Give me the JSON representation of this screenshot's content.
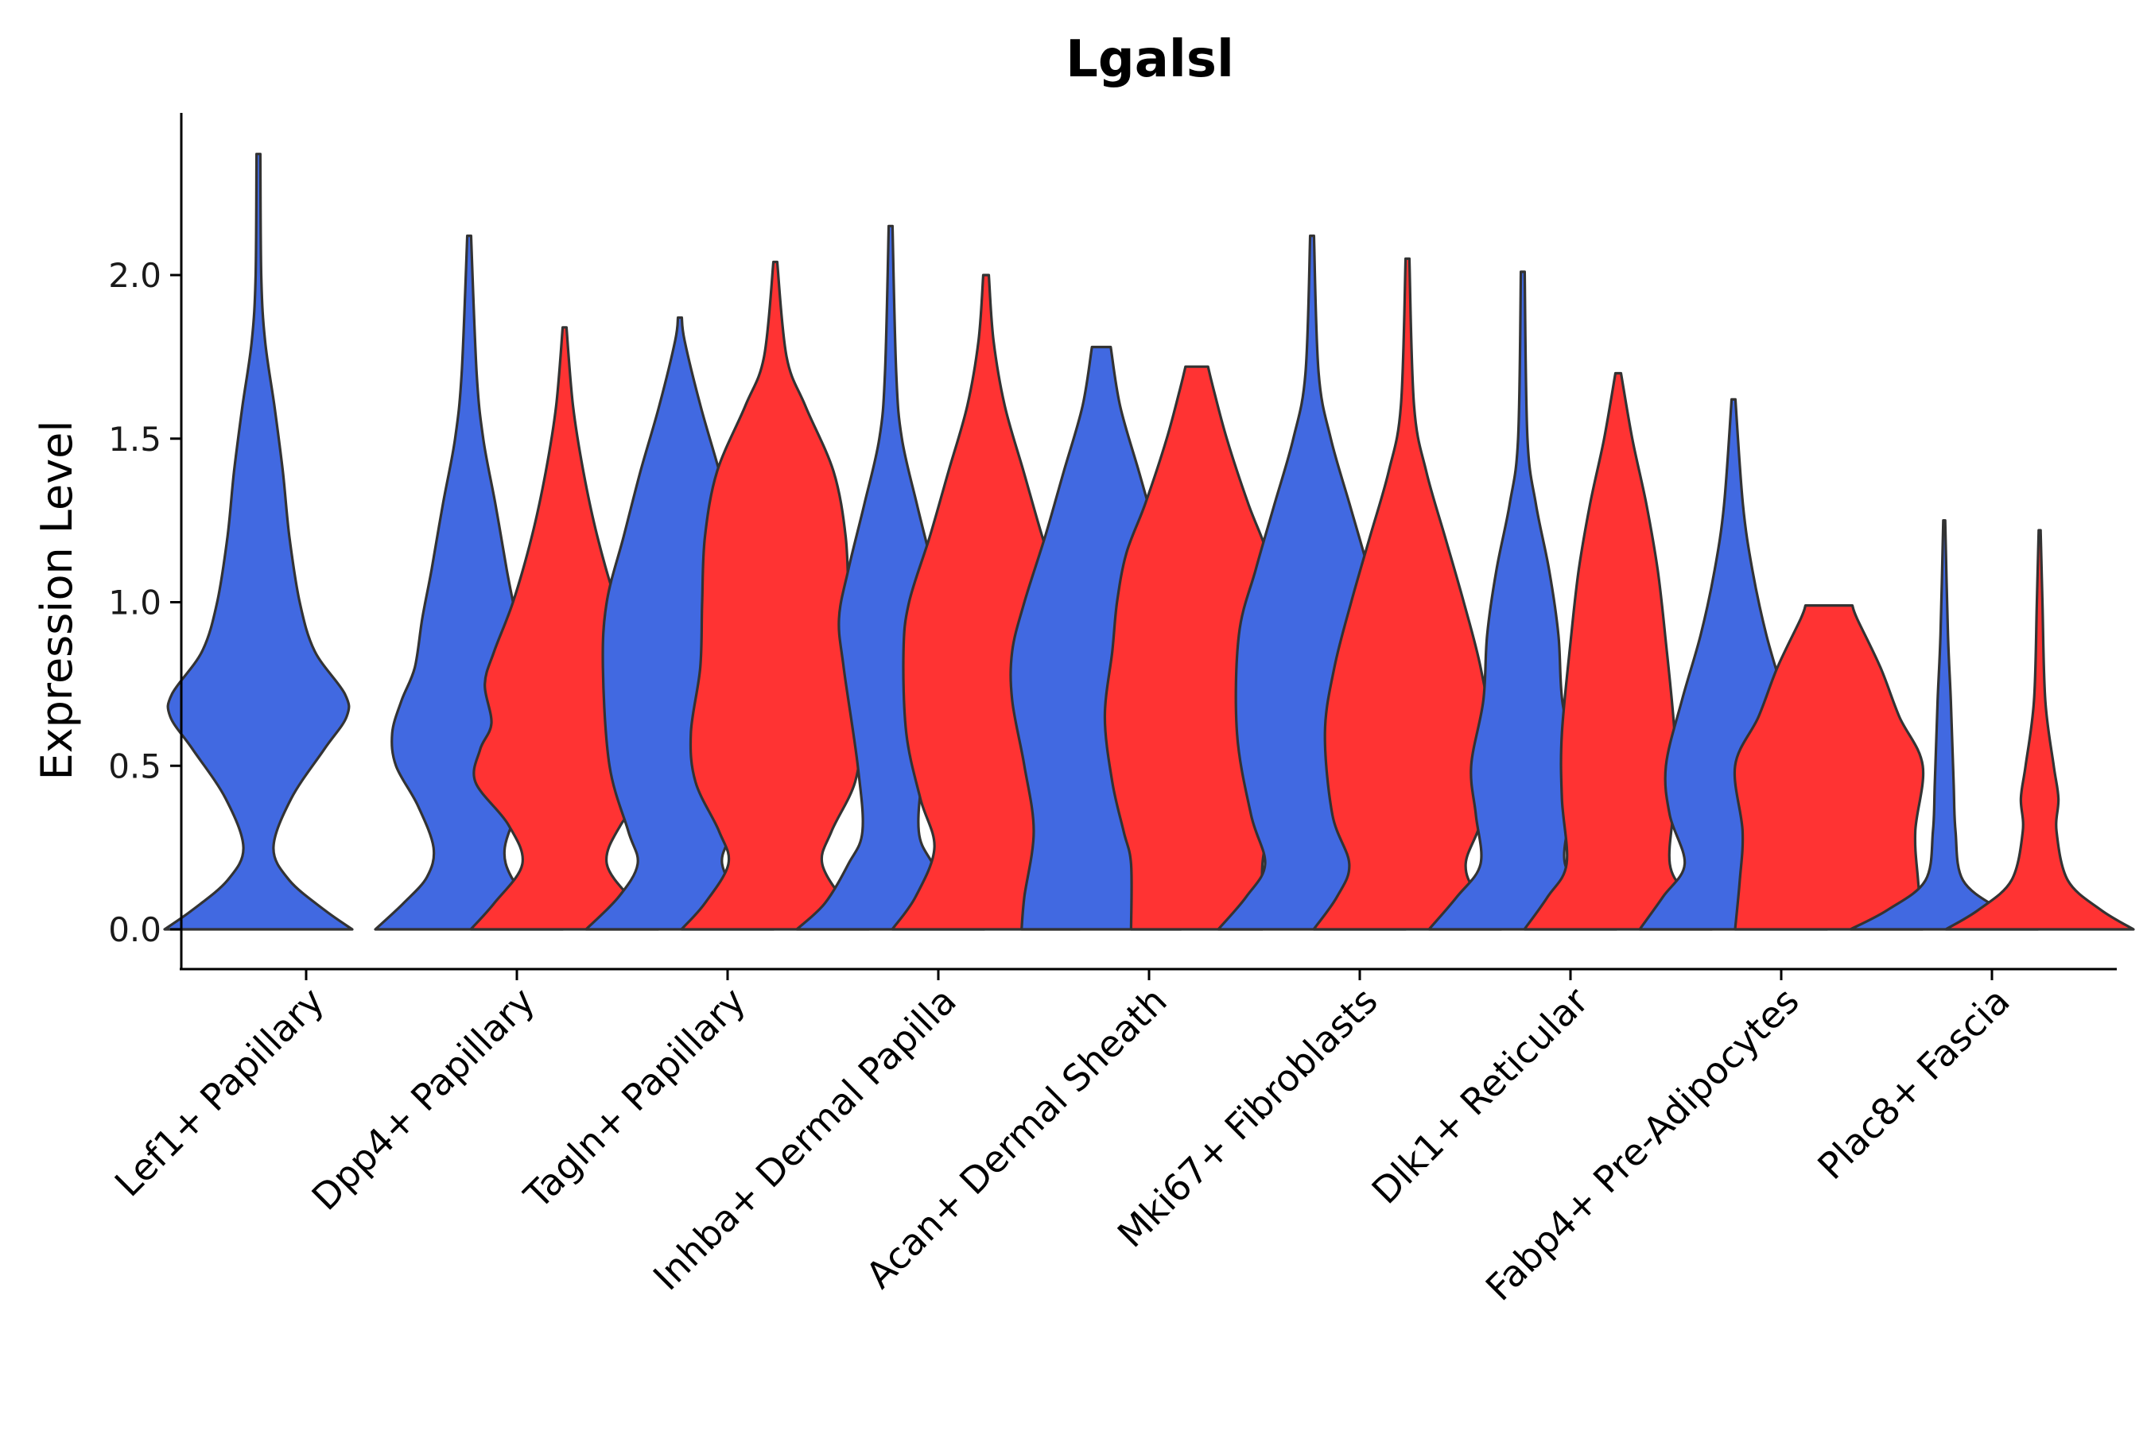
{
  "chart_data": {
    "type": "violin",
    "title": "Lgalsl",
    "xlabel": "",
    "ylabel": "Expression Level",
    "ylim": [
      -0.12,
      2.5
    ],
    "yticks": [
      0.0,
      0.5,
      1.0,
      1.5,
      2.0
    ],
    "ytick_labels": [
      "0.0",
      "0.5",
      "1.0",
      "1.5",
      "2.0"
    ],
    "categories": [
      "Lef1+ Papillary",
      "Dpp4+ Papillary",
      "Tagln+ Papillary",
      "Inhba+ Dermal Papilla",
      "Acan+ Dermal Sheath",
      "Mki67+ Fibroblasts",
      "Dlk1+ Reticular",
      "Fabp4+ Pre-Adipocytes",
      "Plac8+ Fascia"
    ],
    "colors": {
      "blue": "#4169E1",
      "red": "#FF3333"
    },
    "violins": [
      {
        "category": "Lef1+ Papillary",
        "color": "blue",
        "max": 2.37,
        "flat_top": false,
        "profile": [
          [
            0,
            1.0
          ],
          [
            0.06,
            0.7
          ],
          [
            0.15,
            0.33
          ],
          [
            0.25,
            0.16
          ],
          [
            0.4,
            0.35
          ],
          [
            0.55,
            0.7
          ],
          [
            0.65,
            0.94
          ],
          [
            0.72,
            0.92
          ],
          [
            0.85,
            0.6
          ],
          [
            1.0,
            0.44
          ],
          [
            1.2,
            0.33
          ],
          [
            1.4,
            0.26
          ],
          [
            1.6,
            0.17
          ],
          [
            1.8,
            0.07
          ],
          [
            2.0,
            0.03
          ],
          [
            2.37,
            0.02
          ]
        ]
      },
      {
        "category": "Dpp4+ Papillary",
        "color": "blue",
        "max": 2.12,
        "flat_top": false,
        "profile": [
          [
            0,
            1.0
          ],
          [
            0.08,
            0.7
          ],
          [
            0.16,
            0.45
          ],
          [
            0.25,
            0.38
          ],
          [
            0.38,
            0.55
          ],
          [
            0.5,
            0.78
          ],
          [
            0.6,
            0.82
          ],
          [
            0.7,
            0.72
          ],
          [
            0.8,
            0.58
          ],
          [
            0.95,
            0.5
          ],
          [
            1.1,
            0.4
          ],
          [
            1.3,
            0.28
          ],
          [
            1.5,
            0.15
          ],
          [
            1.7,
            0.08
          ],
          [
            2.12,
            0.02
          ]
        ]
      },
      {
        "category": "Dpp4+ Papillary",
        "color": "red",
        "max": 1.84,
        "flat_top": false,
        "profile": [
          [
            0,
            1.0
          ],
          [
            0.08,
            0.75
          ],
          [
            0.2,
            0.45
          ],
          [
            0.32,
            0.6
          ],
          [
            0.45,
            0.95
          ],
          [
            0.55,
            0.9
          ],
          [
            0.63,
            0.78
          ],
          [
            0.75,
            0.85
          ],
          [
            0.85,
            0.75
          ],
          [
            1.0,
            0.55
          ],
          [
            1.2,
            0.35
          ],
          [
            1.4,
            0.2
          ],
          [
            1.6,
            0.09
          ],
          [
            1.84,
            0.02
          ]
        ]
      },
      {
        "category": "Tagln+ Papillary",
        "color": "blue",
        "max": 1.87,
        "flat_top": false,
        "profile": [
          [
            0,
            1.0
          ],
          [
            0.1,
            0.65
          ],
          [
            0.2,
            0.45
          ],
          [
            0.3,
            0.55
          ],
          [
            0.5,
            0.75
          ],
          [
            0.8,
            0.82
          ],
          [
            1.0,
            0.78
          ],
          [
            1.2,
            0.6
          ],
          [
            1.4,
            0.42
          ],
          [
            1.6,
            0.22
          ],
          [
            1.8,
            0.05
          ],
          [
            1.87,
            0.02
          ]
        ]
      },
      {
        "category": "Tagln+ Papillary",
        "color": "red",
        "max": 2.04,
        "flat_top": false,
        "profile": [
          [
            0,
            1.0
          ],
          [
            0.08,
            0.75
          ],
          [
            0.2,
            0.5
          ],
          [
            0.3,
            0.6
          ],
          [
            0.45,
            0.85
          ],
          [
            0.6,
            0.9
          ],
          [
            0.8,
            0.8
          ],
          [
            1.0,
            0.78
          ],
          [
            1.2,
            0.75
          ],
          [
            1.4,
            0.62
          ],
          [
            1.6,
            0.32
          ],
          [
            1.75,
            0.12
          ],
          [
            2.04,
            0.02
          ]
        ]
      },
      {
        "category": "Inhba+ Dermal Papilla",
        "color": "blue",
        "max": 2.15,
        "flat_top": false,
        "profile": [
          [
            0,
            1.0
          ],
          [
            0.08,
            0.7
          ],
          [
            0.2,
            0.45
          ],
          [
            0.3,
            0.3
          ],
          [
            0.5,
            0.35
          ],
          [
            0.8,
            0.5
          ],
          [
            0.95,
            0.55
          ],
          [
            1.1,
            0.45
          ],
          [
            1.3,
            0.28
          ],
          [
            1.5,
            0.12
          ],
          [
            1.7,
            0.06
          ],
          [
            2.15,
            0.02
          ]
        ]
      },
      {
        "category": "Inhba+ Dermal Papilla",
        "color": "red",
        "max": 2.0,
        "flat_top": false,
        "profile": [
          [
            0,
            1.0
          ],
          [
            0.1,
            0.75
          ],
          [
            0.25,
            0.55
          ],
          [
            0.4,
            0.7
          ],
          [
            0.6,
            0.85
          ],
          [
            0.85,
            0.88
          ],
          [
            1.0,
            0.82
          ],
          [
            1.2,
            0.6
          ],
          [
            1.4,
            0.4
          ],
          [
            1.6,
            0.2
          ],
          [
            1.8,
            0.08
          ],
          [
            2.0,
            0.03
          ]
        ]
      },
      {
        "category": "Acan+ Dermal Sheath",
        "color": "blue",
        "max": 1.78,
        "flat_top": true,
        "profile": [
          [
            0,
            0.85
          ],
          [
            0.1,
            0.82
          ],
          [
            0.3,
            0.72
          ],
          [
            0.5,
            0.82
          ],
          [
            0.7,
            0.95
          ],
          [
            0.85,
            0.95
          ],
          [
            1.0,
            0.82
          ],
          [
            1.2,
            0.6
          ],
          [
            1.4,
            0.4
          ],
          [
            1.6,
            0.2
          ],
          [
            1.78,
            0.1
          ]
        ]
      },
      {
        "category": "Acan+ Dermal Sheath",
        "color": "red",
        "max": 1.72,
        "flat_top": true,
        "profile": [
          [
            0,
            0.7
          ],
          [
            0.2,
            0.7
          ],
          [
            0.3,
            0.78
          ],
          [
            0.45,
            0.9
          ],
          [
            0.65,
            0.98
          ],
          [
            0.85,
            0.9
          ],
          [
            1.0,
            0.85
          ],
          [
            1.15,
            0.75
          ],
          [
            1.3,
            0.55
          ],
          [
            1.5,
            0.32
          ],
          [
            1.65,
            0.18
          ],
          [
            1.72,
            0.12
          ]
        ]
      },
      {
        "category": "Mki67+ Fibroblasts",
        "color": "blue",
        "max": 2.12,
        "flat_top": false,
        "profile": [
          [
            0,
            1.0
          ],
          [
            0.1,
            0.7
          ],
          [
            0.2,
            0.5
          ],
          [
            0.35,
            0.65
          ],
          [
            0.6,
            0.8
          ],
          [
            0.9,
            0.78
          ],
          [
            1.1,
            0.6
          ],
          [
            1.3,
            0.4
          ],
          [
            1.5,
            0.2
          ],
          [
            1.7,
            0.07
          ],
          [
            2.12,
            0.02
          ]
        ]
      },
      {
        "category": "Mki67+ Fibroblasts",
        "color": "red",
        "max": 2.05,
        "flat_top": false,
        "profile": [
          [
            0,
            1.0
          ],
          [
            0.1,
            0.75
          ],
          [
            0.2,
            0.62
          ],
          [
            0.35,
            0.8
          ],
          [
            0.6,
            0.88
          ],
          [
            0.8,
            0.78
          ],
          [
            1.0,
            0.6
          ],
          [
            1.2,
            0.4
          ],
          [
            1.4,
            0.2
          ],
          [
            1.6,
            0.07
          ],
          [
            2.05,
            0.02
          ]
        ]
      },
      {
        "category": "Dlk1+ Reticular",
        "color": "blue",
        "max": 2.01,
        "flat_top": false,
        "profile": [
          [
            0,
            1.0
          ],
          [
            0.1,
            0.7
          ],
          [
            0.2,
            0.45
          ],
          [
            0.35,
            0.5
          ],
          [
            0.5,
            0.55
          ],
          [
            0.7,
            0.42
          ],
          [
            0.9,
            0.38
          ],
          [
            1.1,
            0.28
          ],
          [
            1.3,
            0.14
          ],
          [
            1.5,
            0.05
          ],
          [
            2.01,
            0.02
          ]
        ]
      },
      {
        "category": "Dlk1+ Reticular",
        "color": "red",
        "max": 1.7,
        "flat_top": false,
        "profile": [
          [
            0,
            1.0
          ],
          [
            0.1,
            0.75
          ],
          [
            0.2,
            0.55
          ],
          [
            0.4,
            0.6
          ],
          [
            0.6,
            0.6
          ],
          [
            0.9,
            0.5
          ],
          [
            1.1,
            0.42
          ],
          [
            1.3,
            0.3
          ],
          [
            1.5,
            0.15
          ],
          [
            1.7,
            0.03
          ]
        ]
      },
      {
        "category": "Fabp4+ Pre-Adipocytes",
        "color": "blue",
        "max": 1.62,
        "flat_top": false,
        "profile": [
          [
            0,
            1.0
          ],
          [
            0.1,
            0.75
          ],
          [
            0.2,
            0.52
          ],
          [
            0.35,
            0.68
          ],
          [
            0.5,
            0.72
          ],
          [
            0.7,
            0.55
          ],
          [
            0.9,
            0.35
          ],
          [
            1.1,
            0.2
          ],
          [
            1.3,
            0.1
          ],
          [
            1.62,
            0.02
          ]
        ]
      },
      {
        "category": "Fabp4+ Pre-Adipocytes",
        "color": "red",
        "max": 0.99,
        "flat_top": true,
        "profile": [
          [
            0,
            1.0
          ],
          [
            0.15,
            0.95
          ],
          [
            0.3,
            0.92
          ],
          [
            0.5,
            1.0
          ],
          [
            0.65,
            0.75
          ],
          [
            0.8,
            0.55
          ],
          [
            0.95,
            0.3
          ],
          [
            0.99,
            0.25
          ]
        ]
      },
      {
        "category": "Plac8+ Fascia",
        "color": "blue",
        "max": 1.25,
        "flat_top": false,
        "profile": [
          [
            0,
            1.0
          ],
          [
            0.06,
            0.6
          ],
          [
            0.15,
            0.2
          ],
          [
            0.3,
            0.12
          ],
          [
            0.45,
            0.1
          ],
          [
            0.7,
            0.07
          ],
          [
            0.9,
            0.04
          ],
          [
            1.25,
            0.01
          ]
        ]
      },
      {
        "category": "Plac8+ Fascia",
        "color": "red",
        "max": 1.22,
        "flat_top": false,
        "profile": [
          [
            0,
            1.0
          ],
          [
            0.06,
            0.65
          ],
          [
            0.15,
            0.3
          ],
          [
            0.3,
            0.18
          ],
          [
            0.4,
            0.2
          ],
          [
            0.5,
            0.15
          ],
          [
            0.7,
            0.06
          ],
          [
            1.0,
            0.03
          ],
          [
            1.22,
            0.01
          ]
        ]
      }
    ]
  }
}
